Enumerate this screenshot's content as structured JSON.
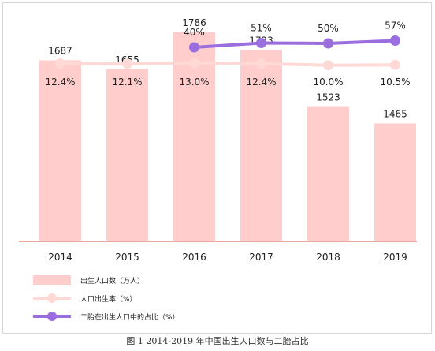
{
  "caption": "图 1 2014-2019 年中国出生人口数与二胎占比",
  "colors": {
    "bar": "#ffcdcb",
    "baseline": "#f2a6a3",
    "birth_rate_line": "#ffd9d5",
    "second_child_line": "#9b6ee0",
    "label_text": "#222222",
    "legend_text": "#222222"
  },
  "chart_data": {
    "type": "bar",
    "categories": [
      "2014",
      "2015",
      "2016",
      "2017",
      "2018",
      "2019"
    ],
    "series": [
      {
        "name": "出生人口数（万人）",
        "type": "bar",
        "values": [
          1687,
          1655,
          1786,
          1723,
          1523,
          1465
        ],
        "labels": [
          "1687",
          "1655",
          "1786",
          "1723",
          "1523",
          "1465"
        ]
      },
      {
        "name": "人口出生率（%）",
        "type": "line",
        "values": [
          12.4,
          12.1,
          13.0,
          12.4,
          10.0,
          10.5
        ],
        "labels": [
          "12.4%",
          "12.1%",
          "13.0%",
          "12.4%",
          "10.0%",
          "10.5%"
        ]
      },
      {
        "name": "二胎在出生人口中的占比（%）",
        "type": "line",
        "values": [
          null,
          null,
          40,
          51,
          50,
          57
        ],
        "labels": [
          "",
          "",
          "40%",
          "51%",
          "50%",
          "57%"
        ]
      }
    ],
    "legend": [
      "出生人口数（万人）",
      "人口出生率（%）",
      "二胎在出生人口中的占比（%）"
    ],
    "legend_position": "bottom-left",
    "grid": false,
    "title": "",
    "xlabel": "",
    "ylabel": ""
  }
}
